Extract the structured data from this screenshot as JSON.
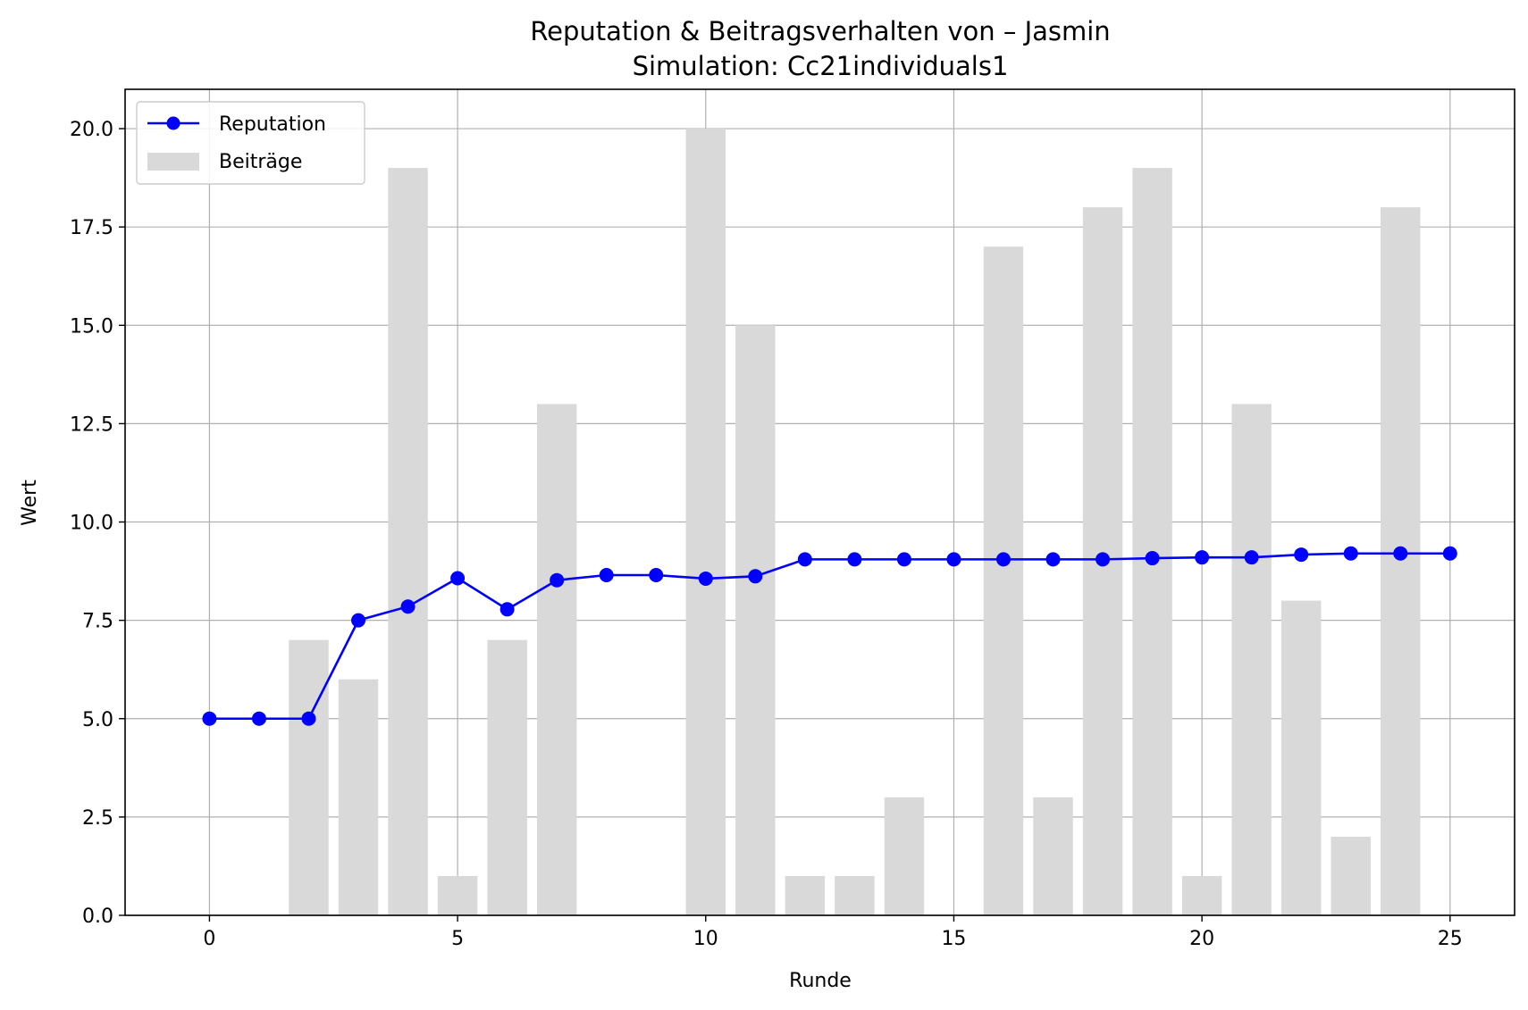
{
  "chart_data": {
    "type": "bar",
    "title": "Reputation & Beitragsverhalten von – Jasmin",
    "subtitle": "Simulation: Cc21individuals1",
    "xlabel": "Runde",
    "ylabel": "Wert",
    "xlim": [
      -1.7,
      26.3
    ],
    "ylim": [
      0,
      21
    ],
    "xticks": [
      "0",
      "5",
      "10",
      "15",
      "20",
      "25"
    ],
    "yticks": [
      "0.0",
      "2.5",
      "5.0",
      "7.5",
      "10.0",
      "12.5",
      "15.0",
      "17.5",
      "20.0"
    ],
    "grid": true,
    "legend_position": "top-left",
    "x": [
      0,
      1,
      2,
      3,
      4,
      5,
      6,
      7,
      8,
      9,
      10,
      11,
      12,
      13,
      14,
      15,
      16,
      17,
      18,
      19,
      20,
      21,
      22,
      23,
      24,
      25
    ],
    "series": [
      {
        "name": "Reputation",
        "type": "line",
        "color": "#0000ff",
        "values": [
          5.0,
          5.0,
          5.0,
          7.5,
          7.85,
          8.57,
          7.78,
          8.52,
          8.65,
          8.65,
          8.56,
          8.62,
          9.05,
          9.05,
          9.05,
          9.05,
          9.05,
          9.05,
          9.05,
          9.08,
          9.1,
          9.1,
          9.17,
          9.2,
          9.2,
          9.2
        ]
      },
      {
        "name": "Beiträge",
        "type": "bar",
        "color": "#d9d9d9",
        "values": [
          0,
          0,
          7,
          6,
          19,
          1,
          7,
          13,
          0,
          0,
          20,
          15,
          1,
          1,
          3,
          0,
          17,
          3,
          18,
          19,
          1,
          13,
          8,
          2,
          18,
          0
        ]
      }
    ]
  }
}
